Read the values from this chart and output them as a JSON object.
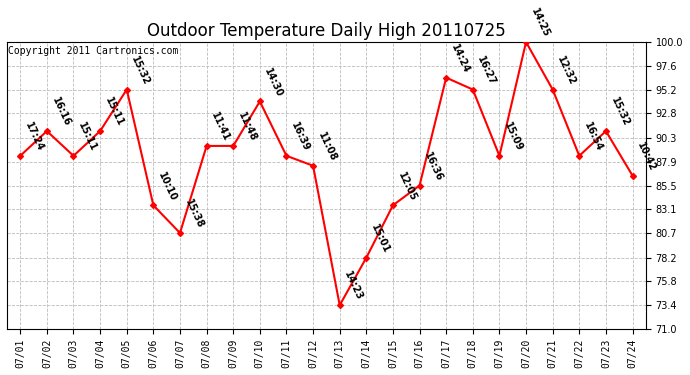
{
  "title": "Outdoor Temperature Daily High 20110725",
  "copyright": "Copyright 2011 Cartronics.com",
  "dates": [
    "07/01",
    "07/02",
    "07/03",
    "07/04",
    "07/05",
    "07/06",
    "07/07",
    "07/08",
    "07/09",
    "07/10",
    "07/11",
    "07/12",
    "07/13",
    "07/14",
    "07/15",
    "07/16",
    "07/17",
    "07/18",
    "07/19",
    "07/20",
    "07/21",
    "07/22",
    "07/23",
    "07/24"
  ],
  "temperatures": [
    88.5,
    91.0,
    88.5,
    91.0,
    95.2,
    83.5,
    80.7,
    89.5,
    89.5,
    94.0,
    88.5,
    87.5,
    73.4,
    78.2,
    83.5,
    85.5,
    96.4,
    95.2,
    88.5,
    100.0,
    95.2,
    88.5,
    91.0,
    86.5
  ],
  "times": [
    "17:24",
    "16:16",
    "15:11",
    "15:11",
    "15:32",
    "10:10",
    "15:38",
    "11:41",
    "11:48",
    "14:30",
    "16:39",
    "11:08",
    "14:23",
    "15:01",
    "12:05",
    "16:36",
    "14:24",
    "16:27",
    "15:09",
    "14:25",
    "12:32",
    "16:54",
    "15:32",
    "10:42"
  ],
  "ylim": [
    71.0,
    100.0
  ],
  "yticks": [
    71.0,
    73.4,
    75.8,
    78.2,
    80.7,
    83.1,
    85.5,
    87.9,
    90.3,
    92.8,
    95.2,
    97.6,
    100.0
  ],
  "line_color": "red",
  "marker_color": "red",
  "grid_color": "#bbbbbb",
  "bg_color": "#ffffff",
  "title_fontsize": 12,
  "label_fontsize": 7,
  "tick_fontsize": 7,
  "copyright_fontsize": 7
}
